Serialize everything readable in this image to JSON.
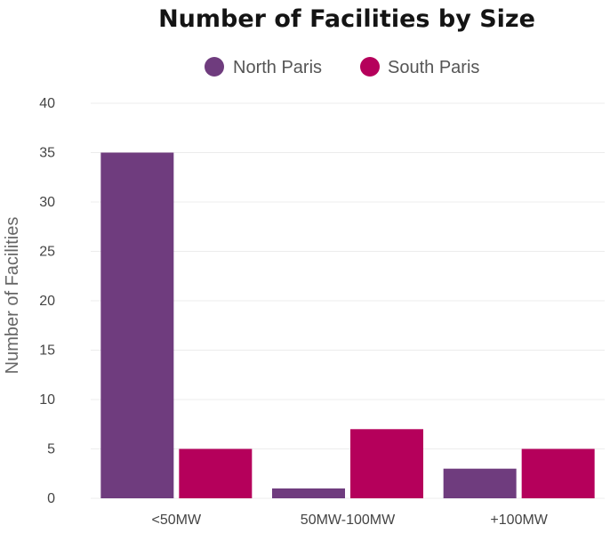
{
  "chart_data": {
    "type": "bar",
    "title": "Number of Facilities by Size",
    "xlabel": "",
    "ylabel": "Number of Facilities",
    "categories": [
      "<50MW",
      "50MW-100MW",
      "+100MW"
    ],
    "series": [
      {
        "name": "North Paris",
        "color": "#6f3c7e",
        "values": [
          35,
          1,
          3
        ]
      },
      {
        "name": "South Paris",
        "color": "#b5005b",
        "values": [
          5,
          7,
          5
        ]
      }
    ],
    "ylim": [
      0,
      40
    ],
    "yticks": [
      0,
      5,
      10,
      15,
      20,
      25,
      30,
      35,
      40
    ],
    "grid": true,
    "legend_position": "top-center"
  }
}
